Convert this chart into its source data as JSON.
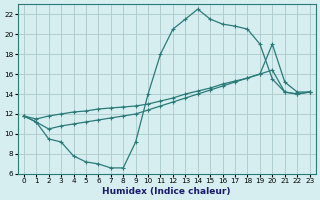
{
  "xlabel": "Humidex (Indice chaleur)",
  "bg_color": "#d6eef0",
  "grid_color": "#b0cecf",
  "line_color": "#2a7a7a",
  "xlim": [
    -0.5,
    23.5
  ],
  "ylim": [
    6,
    23
  ],
  "xticks": [
    0,
    1,
    2,
    3,
    4,
    5,
    6,
    7,
    8,
    9,
    10,
    11,
    12,
    13,
    14,
    15,
    16,
    17,
    18,
    19,
    20,
    21,
    22,
    23
  ],
  "yticks": [
    6,
    8,
    10,
    12,
    14,
    16,
    18,
    20,
    22
  ],
  "line1_x": [
    0,
    1,
    2,
    3,
    4,
    5,
    6,
    7,
    8,
    9,
    10,
    11,
    12,
    13,
    14,
    15,
    16,
    17,
    18,
    19,
    20,
    21,
    22,
    23
  ],
  "line1_y": [
    11.8,
    11.2,
    9.5,
    9.2,
    7.8,
    7.2,
    7.0,
    6.6,
    6.6,
    9.2,
    14.0,
    18.0,
    20.5,
    21.5,
    22.5,
    21.5,
    21.0,
    20.8,
    20.5,
    19.0,
    15.5,
    14.2,
    14.0,
    14.2
  ],
  "line2_x": [
    0,
    1,
    2,
    3,
    4,
    5,
    6,
    7,
    8,
    9,
    10,
    11,
    12,
    13,
    14,
    15,
    16,
    17,
    18,
    19,
    20,
    21,
    22,
    23
  ],
  "line2_y": [
    11.8,
    11.5,
    11.8,
    12.0,
    12.2,
    12.3,
    12.5,
    12.6,
    12.7,
    12.8,
    13.0,
    13.3,
    13.6,
    14.0,
    14.3,
    14.6,
    15.0,
    15.3,
    15.6,
    16.0,
    19.0,
    15.2,
    14.2,
    14.2
  ],
  "line3_x": [
    0,
    1,
    2,
    3,
    4,
    5,
    6,
    7,
    8,
    9,
    10,
    11,
    12,
    13,
    14,
    15,
    16,
    17,
    18,
    19,
    20,
    21,
    22,
    23
  ],
  "line3_y": [
    11.8,
    11.2,
    10.5,
    10.8,
    11.0,
    11.2,
    11.4,
    11.6,
    11.8,
    12.0,
    12.4,
    12.8,
    13.2,
    13.6,
    14.0,
    14.4,
    14.8,
    15.2,
    15.6,
    16.0,
    16.4,
    14.2,
    14.0,
    14.2
  ]
}
